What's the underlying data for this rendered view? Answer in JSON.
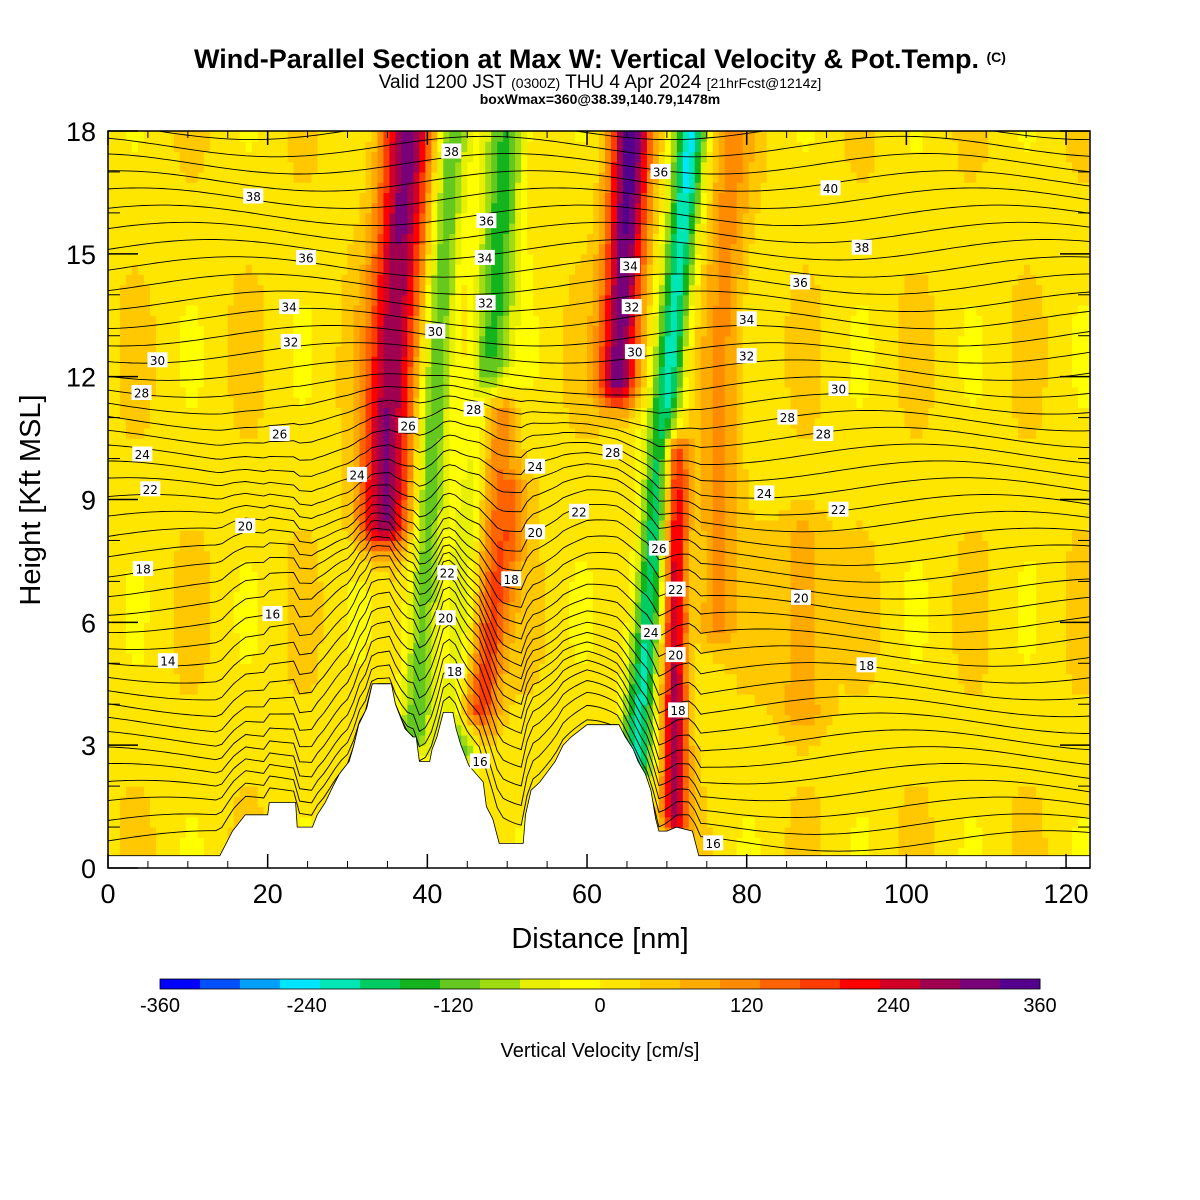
{
  "header": {
    "title": "Wind-Parallel Section at Max W: Vertical Velocity & Pot.Temp.",
    "copyright_mark": "(C)",
    "valid_prefix": "Valid 1200 JST",
    "valid_utc": "(0300Z)",
    "valid_date": "THU 4 Apr 2024",
    "forecast_info": "[21hrFcst@1214z]",
    "box_info": "boxWmax=360@38.39,140.79,1478m"
  },
  "chart_data": {
    "type": "heatmap",
    "xlabel": "Distance [nm]",
    "ylabel": "Height [Kft MSL]",
    "xlim": [
      0,
      123
    ],
    "ylim": [
      0,
      18
    ],
    "x_ticks": [
      0,
      20,
      40,
      60,
      80,
      100,
      120
    ],
    "y_ticks": [
      0,
      3,
      6,
      9,
      12,
      15,
      18
    ],
    "colorbar": {
      "label": "Vertical Velocity [cm/s]",
      "ticks": [
        -360,
        -240,
        -120,
        0,
        120,
        240,
        360
      ],
      "levels": [
        -360,
        -330,
        -300,
        -270,
        -240,
        -210,
        -180,
        -150,
        -120,
        -90,
        -60,
        -30,
        0,
        30,
        60,
        90,
        120,
        150,
        180,
        210,
        240,
        270,
        300,
        330,
        360
      ],
      "colors": [
        "#0000ff",
        "#0050ff",
        "#00a0ff",
        "#00e6ff",
        "#00e6b4",
        "#00cc64",
        "#14b41e",
        "#64c81e",
        "#a0dc14",
        "#e6f000",
        "#ffff00",
        "#ffe600",
        "#ffc800",
        "#ffaa00",
        "#ff8c00",
        "#ff6400",
        "#ff3c00",
        "#ff0000",
        "#d20028",
        "#a00050",
        "#780078",
        "#55008c"
      ]
    },
    "w_field": {
      "units": "cm/s",
      "features": [
        {
          "x_base": 34.5,
          "x_top": 37.5,
          "width": 3.2,
          "w": 280,
          "z_bottom": 8.5,
          "z_top": 18
        },
        {
          "x_base": 38.5,
          "x_top": 43,
          "width": 2.0,
          "w": -150,
          "z_bottom": 3.5,
          "z_top": 18
        },
        {
          "x_base": 45.5,
          "x_top": 48.5,
          "width": 2.5,
          "w": 200,
          "z_bottom": 4.0,
          "z_top": 11
        },
        {
          "x_base": 44.0,
          "x_top": 50.0,
          "width": 2.5,
          "w": -170,
          "z_bottom": 3.0,
          "z_top": 18
        },
        {
          "x_base": 47.0,
          "x_top": 51.0,
          "width": 2.0,
          "w": 90,
          "z_bottom": 4.0,
          "z_top": 9
        },
        {
          "x_base": 64.0,
          "x_top": 65.5,
          "width": 2.5,
          "w": 310,
          "z_bottom": 12.0,
          "z_top": 18
        },
        {
          "x_base": 66.0,
          "x_top": 73.0,
          "width": 2.0,
          "w": -240,
          "z_bottom": 2.5,
          "z_top": 18
        },
        {
          "x_base": 71.0,
          "x_top": 71.0,
          "width": 1.6,
          "w": 260,
          "z_bottom": 1.5,
          "z_top": 10
        },
        {
          "x_base": 76.0,
          "x_top": 78.0,
          "width": 2.5,
          "w": 90,
          "z_bottom": 6.0,
          "z_top": 18
        },
        {
          "x_base": 87.0,
          "x_top": 87.0,
          "width": 3.0,
          "w": 80,
          "z_bottom": 4.0,
          "z_top": 8
        }
      ]
    },
    "terrain_kft": [
      [
        0,
        0.3
      ],
      [
        14,
        0.3
      ],
      [
        14.8,
        0.6
      ],
      [
        15.6,
        0.9
      ],
      [
        17.2,
        1.3
      ],
      [
        20,
        1.3
      ],
      [
        20.2,
        1.6
      ],
      [
        23.5,
        1.6
      ],
      [
        23.7,
        1.0
      ],
      [
        25.6,
        1.0
      ],
      [
        26.2,
        1.3
      ],
      [
        27.2,
        1.6
      ],
      [
        28.2,
        2.0
      ],
      [
        29,
        2.3
      ],
      [
        30.2,
        2.6
      ],
      [
        30.8,
        3.0
      ],
      [
        31.4,
        3.5
      ],
      [
        32.4,
        3.9
      ],
      [
        33.1,
        4.5
      ],
      [
        35.5,
        4.5
      ],
      [
        36.0,
        4.0
      ],
      [
        36.6,
        3.7
      ],
      [
        37.2,
        3.4
      ],
      [
        38.2,
        3.2
      ],
      [
        38.6,
        3.2
      ],
      [
        39.0,
        2.6
      ],
      [
        40.3,
        2.6
      ],
      [
        40.6,
        2.9
      ],
      [
        41.2,
        3.2
      ],
      [
        41.6,
        3.5
      ],
      [
        42.0,
        3.8
      ],
      [
        43.2,
        3.8
      ],
      [
        43.6,
        3.4
      ],
      [
        44.2,
        3.0
      ],
      [
        45.2,
        2.5
      ],
      [
        47.0,
        2.1
      ],
      [
        47.4,
        1.5
      ],
      [
        48.2,
        1.2
      ],
      [
        48.6,
        0.9
      ],
      [
        49.0,
        0.6
      ],
      [
        52.0,
        0.6
      ],
      [
        52.3,
        1.3
      ],
      [
        53.0,
        1.9
      ],
      [
        54.1,
        2.1
      ],
      [
        56.0,
        2.6
      ],
      [
        57.0,
        3.0
      ],
      [
        58.0,
        3.2
      ],
      [
        60.0,
        3.5
      ],
      [
        64.0,
        3.5
      ],
      [
        64.8,
        3.2
      ],
      [
        65.8,
        2.9
      ],
      [
        66.4,
        2.6
      ],
      [
        67.3,
        2.3
      ],
      [
        68.0,
        1.9
      ],
      [
        68.6,
        1.2
      ],
      [
        69.0,
        0.9
      ],
      [
        70.0,
        0.9
      ],
      [
        71.2,
        1.0
      ],
      [
        73.2,
        0.9
      ],
      [
        74.0,
        0.3
      ],
      [
        123,
        0.3
      ]
    ],
    "theta_labels": [
      {
        "text": "38",
        "x": 43.0,
        "y": 17.5
      },
      {
        "text": "38",
        "x": 18.2,
        "y": 16.4
      },
      {
        "text": "36",
        "x": 24.8,
        "y": 14.9
      },
      {
        "text": "34",
        "x": 22.7,
        "y": 13.7
      },
      {
        "text": "32",
        "x": 22.9,
        "y": 12.85
      },
      {
        "text": "30",
        "x": 6.2,
        "y": 12.4
      },
      {
        "text": "28",
        "x": 4.2,
        "y": 11.6
      },
      {
        "text": "26",
        "x": 21.5,
        "y": 10.6
      },
      {
        "text": "24",
        "x": 4.3,
        "y": 10.1
      },
      {
        "text": "22",
        "x": 5.3,
        "y": 9.25
      },
      {
        "text": "20",
        "x": 17.2,
        "y": 8.35
      },
      {
        "text": "18",
        "x": 4.4,
        "y": 7.3
      },
      {
        "text": "16",
        "x": 20.6,
        "y": 6.2
      },
      {
        "text": "14",
        "x": 7.5,
        "y": 5.05
      },
      {
        "text": "36",
        "x": 47.4,
        "y": 15.8
      },
      {
        "text": "34",
        "x": 47.2,
        "y": 14.9
      },
      {
        "text": "32",
        "x": 47.3,
        "y": 13.8
      },
      {
        "text": "30",
        "x": 41.0,
        "y": 13.1
      },
      {
        "text": "28",
        "x": 45.8,
        "y": 11.2
      },
      {
        "text": "26",
        "x": 37.6,
        "y": 10.8
      },
      {
        "text": "24",
        "x": 31.2,
        "y": 9.6
      },
      {
        "text": "24",
        "x": 53.5,
        "y": 9.8
      },
      {
        "text": "22",
        "x": 59.0,
        "y": 8.7
      },
      {
        "text": "20",
        "x": 53.5,
        "y": 8.2
      },
      {
        "text": "18",
        "x": 50.5,
        "y": 7.05
      },
      {
        "text": "22",
        "x": 42.5,
        "y": 7.2
      },
      {
        "text": "20",
        "x": 42.3,
        "y": 6.1
      },
      {
        "text": "18",
        "x": 43.4,
        "y": 4.8
      },
      {
        "text": "16",
        "x": 46.6,
        "y": 2.6
      },
      {
        "text": "36",
        "x": 69.2,
        "y": 17.0
      },
      {
        "text": "34",
        "x": 65.4,
        "y": 14.7
      },
      {
        "text": "32",
        "x": 65.6,
        "y": 13.7
      },
      {
        "text": "30",
        "x": 66.0,
        "y": 12.6
      },
      {
        "text": "28",
        "x": 63.2,
        "y": 10.15
      },
      {
        "text": "26",
        "x": 69.0,
        "y": 7.8
      },
      {
        "text": "22",
        "x": 71.1,
        "y": 6.8
      },
      {
        "text": "24",
        "x": 68.0,
        "y": 5.75
      },
      {
        "text": "20",
        "x": 71.1,
        "y": 5.2
      },
      {
        "text": "18",
        "x": 71.4,
        "y": 3.85
      },
      {
        "text": "16",
        "x": 75.8,
        "y": 0.6
      },
      {
        "text": "40",
        "x": 90.5,
        "y": 16.6
      },
      {
        "text": "38",
        "x": 94.4,
        "y": 15.15
      },
      {
        "text": "36",
        "x": 86.7,
        "y": 14.3
      },
      {
        "text": "34",
        "x": 80.0,
        "y": 13.4
      },
      {
        "text": "32",
        "x": 80.0,
        "y": 12.5
      },
      {
        "text": "30",
        "x": 91.5,
        "y": 11.7
      },
      {
        "text": "28",
        "x": 85.1,
        "y": 11.0
      },
      {
        "text": "28",
        "x": 89.6,
        "y": 10.6
      },
      {
        "text": "24",
        "x": 82.2,
        "y": 9.15
      },
      {
        "text": "22",
        "x": 91.5,
        "y": 8.75
      },
      {
        "text": "20",
        "x": 86.8,
        "y": 6.6
      },
      {
        "text": "18",
        "x": 95.0,
        "y": 4.95
      }
    ]
  }
}
